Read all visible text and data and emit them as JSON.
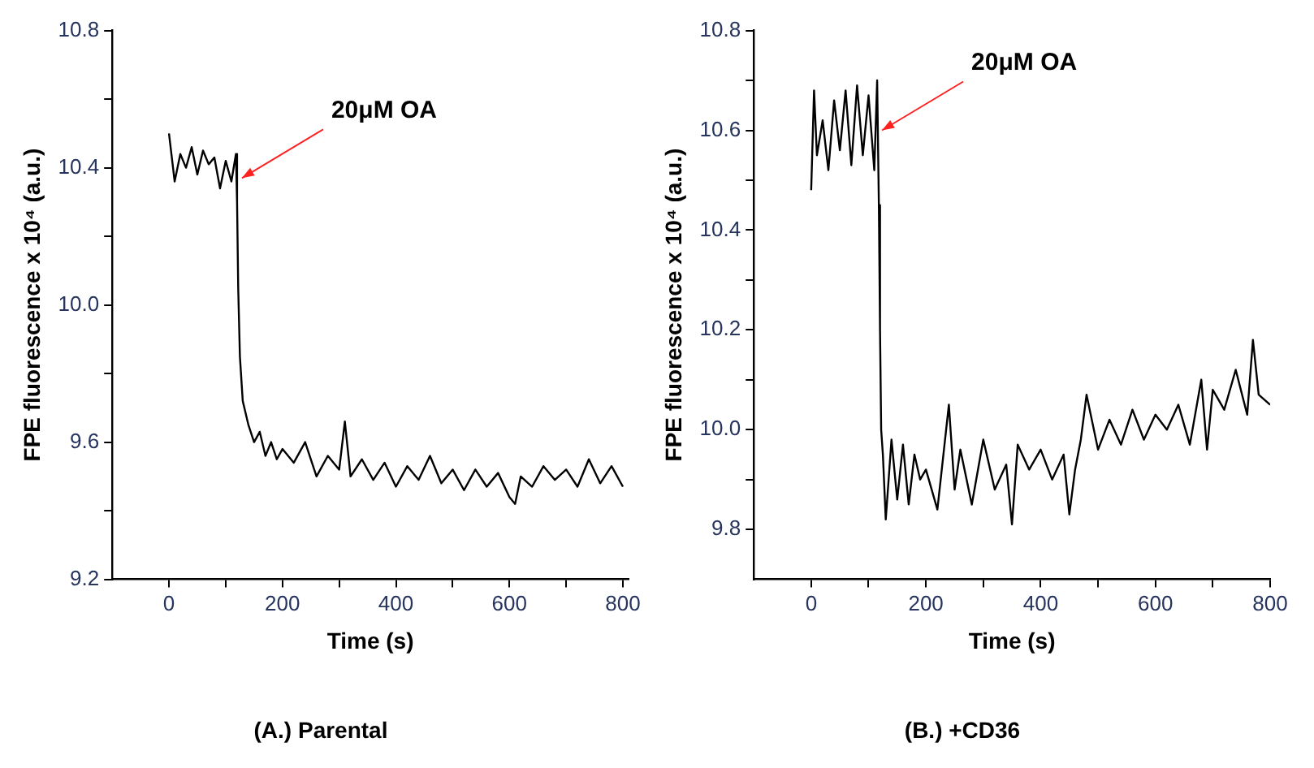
{
  "chart_data": [
    {
      "type": "line",
      "title": "(A.) Parental",
      "xlabel": "Time (s)",
      "ylabel": "FPE fluorescence x 10⁴ (a.u.)",
      "grid": false,
      "legend": false,
      "marker": "none",
      "line_style": "solid",
      "xlim": [
        -100,
        810
      ],
      "xticks": [
        0,
        {
          "value": 100,
          "label": null
        },
        200,
        {
          "value": 300,
          "label": null
        },
        400,
        {
          "value": 500,
          "label": null
        },
        600,
        {
          "value": 700,
          "label": null
        },
        800
      ],
      "ylim": [
        9.2,
        10.8
      ],
      "yticks": [
        9.2,
        {
          "value": 9.4,
          "label": null
        },
        9.6,
        {
          "value": 9.8,
          "label": null
        },
        {
          "value": 10,
          "label": "10.0"
        },
        {
          "value": 10.2,
          "label": null
        },
        10.4,
        {
          "value": 10.6,
          "label": null
        },
        10.8
      ],
      "annotations": [
        {
          "text": "20μM OA",
          "x": 120,
          "y": 10.37
        }
      ],
      "series": [
        {
          "color": "#000000",
          "x": [
            0,
            10,
            20,
            30,
            40,
            50,
            60,
            70,
            80,
            90,
            100,
            110,
            118,
            120,
            122,
            125,
            130,
            140,
            150,
            160,
            170,
            180,
            190,
            200,
            220,
            240,
            260,
            280,
            300,
            310,
            320,
            340,
            360,
            380,
            400,
            420,
            440,
            460,
            480,
            500,
            520,
            540,
            560,
            580,
            600,
            610,
            620,
            640,
            660,
            680,
            700,
            720,
            740,
            760,
            780,
            800
          ],
          "values": [
            10.5,
            10.36,
            10.44,
            10.4,
            10.46,
            10.38,
            10.45,
            10.41,
            10.43,
            10.34,
            10.42,
            10.36,
            10.44,
            10.3,
            10.05,
            9.85,
            9.72,
            9.65,
            9.6,
            9.63,
            9.56,
            9.6,
            9.55,
            9.58,
            9.54,
            9.6,
            9.5,
            9.56,
            9.52,
            9.66,
            9.5,
            9.55,
            9.49,
            9.54,
            9.47,
            9.53,
            9.49,
            9.56,
            9.48,
            9.52,
            9.46,
            9.52,
            9.47,
            9.51,
            9.44,
            9.42,
            9.5,
            9.47,
            9.53,
            9.49,
            9.52,
            9.47,
            9.55,
            9.48,
            9.53,
            9.47
          ]
        }
      ]
    },
    {
      "type": "line",
      "title": "(B.) +CD36",
      "xlabel": "Time (s)",
      "ylabel": "FPE fluorescence x 10⁴ (a.u.)",
      "grid": false,
      "legend": false,
      "marker": "none",
      "line_style": "solid",
      "xlim": [
        -100,
        800
      ],
      "xticks": [
        0,
        {
          "value": 100,
          "label": null
        },
        200,
        {
          "value": 300,
          "label": null
        },
        400,
        {
          "value": 500,
          "label": null
        },
        600,
        {
          "value": 700,
          "label": null
        },
        800
      ],
      "ylim": [
        9.7,
        10.8
      ],
      "yticks": [
        9.8,
        {
          "value": 9.9,
          "label": null
        },
        {
          "value": 10,
          "label": "10.0"
        },
        {
          "value": 10.1,
          "label": null
        },
        10.2,
        {
          "value": 10.3,
          "label": null
        },
        10.4,
        {
          "value": 10.5,
          "label": null
        },
        10.6,
        {
          "value": 10.7,
          "label": null
        },
        10.8
      ],
      "annotations": [
        {
          "text": "20μM OA",
          "x": 115,
          "y": 10.6
        }
      ],
      "series": [
        {
          "color": "#000000",
          "x": [
            0,
            5,
            10,
            20,
            30,
            40,
            50,
            60,
            70,
            80,
            90,
            100,
            110,
            115,
            118,
            120,
            122,
            125,
            130,
            140,
            150,
            160,
            170,
            180,
            190,
            200,
            220,
            240,
            250,
            260,
            280,
            300,
            320,
            340,
            350,
            360,
            380,
            400,
            420,
            440,
            450,
            460,
            470,
            480,
            500,
            520,
            540,
            560,
            580,
            600,
            620,
            640,
            660,
            680,
            690,
            700,
            720,
            740,
            760,
            770,
            780,
            800
          ],
          "values": [
            10.48,
            10.68,
            10.55,
            10.62,
            10.52,
            10.66,
            10.56,
            10.68,
            10.53,
            10.69,
            10.55,
            10.67,
            10.52,
            10.7,
            10.45,
            10.2,
            10.0,
            9.95,
            9.82,
            9.98,
            9.86,
            9.97,
            9.85,
            9.95,
            9.9,
            9.92,
            9.84,
            10.05,
            9.88,
            9.96,
            9.85,
            9.98,
            9.88,
            9.93,
            9.81,
            9.97,
            9.92,
            9.96,
            9.9,
            9.95,
            9.83,
            9.92,
            9.98,
            10.07,
            9.96,
            10.02,
            9.97,
            10.04,
            9.98,
            10.03,
            10.0,
            10.05,
            9.97,
            10.1,
            9.96,
            10.08,
            10.04,
            10.12,
            10.03,
            10.18,
            10.07,
            10.05
          ]
        }
      ]
    }
  ]
}
